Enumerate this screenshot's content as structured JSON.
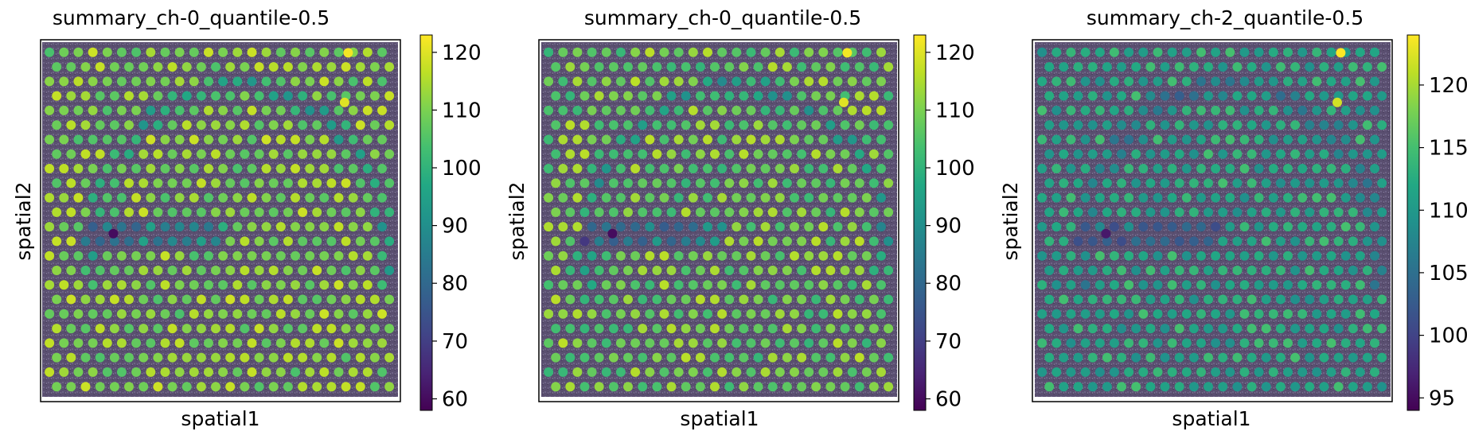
{
  "chart_data": [
    {
      "type": "scatter",
      "title": "summary_ch-0_quantile-0.5",
      "xlabel": "spatial1",
      "ylabel": "spatial2",
      "colorbar": {
        "ticks": [
          "60",
          "70",
          "80",
          "90",
          "100",
          "110",
          "120"
        ],
        "min": 58,
        "max": 123
      },
      "value_range": [
        58,
        123
      ],
      "spots": "regular grid of 24 x 24 spots over a tissue image; values mostly 100-120, with lower values (60-95) along an arc-shaped band and a horizontal band in the left-center",
      "highlights": [
        {
          "label": "max",
          "value": 122
        },
        {
          "label": "min",
          "value": 60
        }
      ]
    },
    {
      "type": "scatter",
      "title": "summary_ch-0_quantile-0.5",
      "xlabel": "spatial1",
      "ylabel": "spatial2",
      "colorbar": {
        "ticks": [
          "60",
          "70",
          "80",
          "90",
          "100",
          "110",
          "120"
        ],
        "min": 58,
        "max": 123
      },
      "value_range": [
        58,
        123
      ],
      "highlights": [
        {
          "label": "max",
          "value": 122
        },
        {
          "label": "min",
          "value": 60
        }
      ]
    },
    {
      "type": "scatter",
      "title": "summary_ch-2_quantile-0.5",
      "xlabel": "spatial1",
      "ylabel": "spatial2",
      "colorbar": {
        "ticks": [
          "95",
          "100",
          "105",
          "110",
          "115",
          "120"
        ],
        "min": 94,
        "max": 124
      },
      "value_range": [
        94,
        124
      ],
      "highlights": [
        {
          "label": "max",
          "value": 124
        },
        {
          "label": "min",
          "value": 96
        }
      ]
    }
  ],
  "colormap": "viridis"
}
